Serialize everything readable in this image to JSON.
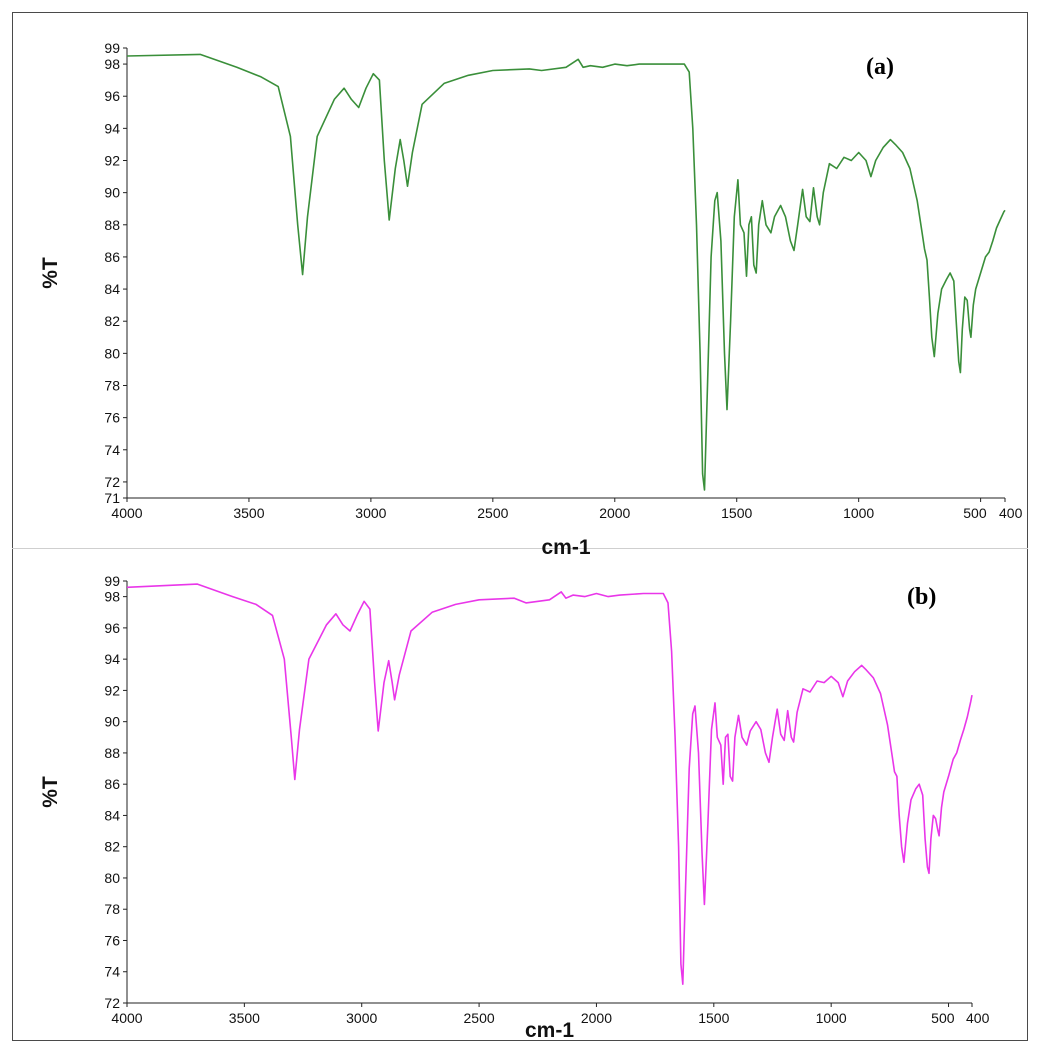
{
  "chart_data": [
    {
      "type": "line",
      "panel_label": "(a)",
      "xlabel": "cm-1",
      "ylabel": "%T",
      "xlim": [
        4000,
        400
      ],
      "ylim": [
        71,
        99
      ],
      "x_ticks": [
        4000,
        3500,
        3000,
        2500,
        2000,
        1500,
        1000,
        500,
        400
      ],
      "x_tick_labels": [
        "4000",
        "3500",
        "3000",
        "2500",
        "2000",
        "1500",
        "1000",
        "500",
        "400"
      ],
      "y_ticks": [
        71,
        72,
        74,
        76,
        78,
        80,
        82,
        84,
        86,
        88,
        90,
        92,
        94,
        96,
        98,
        99
      ],
      "grid": false,
      "line_color": "#3a8f3a",
      "series": [
        {
          "points": [
            [
              4000,
              98.5
            ],
            [
              3700,
              98.6
            ],
            [
              3550,
              97.8
            ],
            [
              3450,
              97.2
            ],
            [
              3380,
              96.6
            ],
            [
              3330,
              93.5
            ],
            [
              3300,
              88.0
            ],
            [
              3280,
              84.9
            ],
            [
              3260,
              88.5
            ],
            [
              3220,
              93.5
            ],
            [
              3150,
              95.8
            ],
            [
              3110,
              96.5
            ],
            [
              3080,
              95.8
            ],
            [
              3050,
              95.3
            ],
            [
              3020,
              96.5
            ],
            [
              2990,
              97.4
            ],
            [
              2965,
              97.0
            ],
            [
              2945,
              92.0
            ],
            [
              2925,
              88.3
            ],
            [
              2900,
              91.5
            ],
            [
              2880,
              93.3
            ],
            [
              2865,
              92.0
            ],
            [
              2850,
              90.4
            ],
            [
              2830,
              92.5
            ],
            [
              2790,
              95.5
            ],
            [
              2700,
              96.8
            ],
            [
              2600,
              97.3
            ],
            [
              2500,
              97.6
            ],
            [
              2350,
              97.7
            ],
            [
              2300,
              97.6
            ],
            [
              2200,
              97.8
            ],
            [
              2150,
              98.3
            ],
            [
              2130,
              97.8
            ],
            [
              2100,
              97.9
            ],
            [
              2050,
              97.8
            ],
            [
              2000,
              98.0
            ],
            [
              1950,
              97.9
            ],
            [
              1900,
              98.0
            ],
            [
              1800,
              98.0
            ],
            [
              1715,
              98.0
            ],
            [
              1695,
              97.5
            ],
            [
              1680,
              94.0
            ],
            [
              1665,
              88.0
            ],
            [
              1650,
              80.0
            ],
            [
              1640,
              72.5
            ],
            [
              1632,
              71.5
            ],
            [
              1620,
              78.0
            ],
            [
              1605,
              86.0
            ],
            [
              1590,
              89.5
            ],
            [
              1580,
              90.0
            ],
            [
              1565,
              87.0
            ],
            [
              1550,
              80.0
            ],
            [
              1540,
              76.5
            ],
            [
              1525,
              82.0
            ],
            [
              1510,
              88.5
            ],
            [
              1495,
              90.8
            ],
            [
              1485,
              88.0
            ],
            [
              1470,
              87.5
            ],
            [
              1460,
              84.8
            ],
            [
              1450,
              88.0
            ],
            [
              1440,
              88.5
            ],
            [
              1430,
              85.5
            ],
            [
              1420,
              85.0
            ],
            [
              1410,
              88.0
            ],
            [
              1395,
              89.5
            ],
            [
              1380,
              88.0
            ],
            [
              1360,
              87.5
            ],
            [
              1345,
              88.5
            ],
            [
              1320,
              89.2
            ],
            [
              1300,
              88.5
            ],
            [
              1280,
              87.0
            ],
            [
              1265,
              86.4
            ],
            [
              1250,
              88.0
            ],
            [
              1230,
              90.2
            ],
            [
              1215,
              88.5
            ],
            [
              1200,
              88.2
            ],
            [
              1185,
              90.3
            ],
            [
              1170,
              88.5
            ],
            [
              1160,
              88.0
            ],
            [
              1145,
              90.0
            ],
            [
              1120,
              91.8
            ],
            [
              1090,
              91.5
            ],
            [
              1060,
              92.2
            ],
            [
              1030,
              92.0
            ],
            [
              1000,
              92.5
            ],
            [
              970,
              92.0
            ],
            [
              950,
              91.0
            ],
            [
              930,
              92.0
            ],
            [
              900,
              92.8
            ],
            [
              870,
              93.3
            ],
            [
              850,
              93.0
            ],
            [
              820,
              92.5
            ],
            [
              790,
              91.5
            ],
            [
              760,
              89.5
            ],
            [
              740,
              87.5
            ],
            [
              730,
              86.5
            ],
            [
              720,
              85.8
            ],
            [
              710,
              83.5
            ],
            [
              700,
              81.0
            ],
            [
              690,
              79.8
            ],
            [
              675,
              82.5
            ],
            [
              660,
              84.0
            ],
            [
              640,
              84.6
            ],
            [
              625,
              85.0
            ],
            [
              610,
              84.5
            ],
            [
              600,
              82.0
            ],
            [
              590,
              79.5
            ],
            [
              583,
              78.8
            ],
            [
              575,
              81.5
            ],
            [
              565,
              83.5
            ],
            [
              555,
              83.3
            ],
            [
              545,
              81.5
            ],
            [
              540,
              81.0
            ],
            [
              530,
              83.0
            ],
            [
              520,
              84.0
            ],
            [
              500,
              85.0
            ],
            [
              480,
              86.0
            ],
            [
              465,
              86.3
            ],
            [
              450,
              87.0
            ],
            [
              435,
              87.8
            ],
            [
              420,
              88.3
            ],
            [
              405,
              88.8
            ],
            [
              400,
              88.9
            ]
          ]
        }
      ]
    },
    {
      "type": "line",
      "panel_label": "(b)",
      "xlabel": "cm-1",
      "ylabel": "%T",
      "xlim": [
        4000,
        400
      ],
      "ylim": [
        72,
        99
      ],
      "x_ticks": [
        4000,
        3500,
        3000,
        2500,
        2000,
        1500,
        1000,
        500,
        400
      ],
      "x_tick_labels": [
        "4000",
        "3500",
        "3000",
        "2500",
        "2000",
        "1500",
        "1000",
        "500",
        "400"
      ],
      "y_ticks": [
        72,
        74,
        76,
        78,
        80,
        82,
        84,
        86,
        88,
        90,
        92,
        94,
        96,
        98,
        99
      ],
      "grid": false,
      "line_color": "#e936e9",
      "series": [
        {
          "points": [
            [
              4000,
              98.6
            ],
            [
              3700,
              98.8
            ],
            [
              3550,
              98.0
            ],
            [
              3450,
              97.5
            ],
            [
              3380,
              96.8
            ],
            [
              3330,
              94.0
            ],
            [
              3300,
              89.0
            ],
            [
              3285,
              86.3
            ],
            [
              3265,
              89.5
            ],
            [
              3225,
              94.0
            ],
            [
              3150,
              96.2
            ],
            [
              3110,
              96.9
            ],
            [
              3080,
              96.2
            ],
            [
              3050,
              95.8
            ],
            [
              3020,
              96.8
            ],
            [
              2990,
              97.7
            ],
            [
              2965,
              97.2
            ],
            [
              2945,
              92.5
            ],
            [
              2930,
              89.4
            ],
            [
              2905,
              92.5
            ],
            [
              2885,
              93.9
            ],
            [
              2870,
              92.5
            ],
            [
              2860,
              91.4
            ],
            [
              2840,
              93.0
            ],
            [
              2790,
              95.8
            ],
            [
              2700,
              97.0
            ],
            [
              2600,
              97.5
            ],
            [
              2500,
              97.8
            ],
            [
              2350,
              97.9
            ],
            [
              2300,
              97.6
            ],
            [
              2200,
              97.8
            ],
            [
              2150,
              98.3
            ],
            [
              2130,
              97.9
            ],
            [
              2100,
              98.1
            ],
            [
              2050,
              98.0
            ],
            [
              2000,
              98.2
            ],
            [
              1950,
              98.0
            ],
            [
              1900,
              98.1
            ],
            [
              1800,
              98.2
            ],
            [
              1715,
              98.2
            ],
            [
              1695,
              97.6
            ],
            [
              1680,
              94.5
            ],
            [
              1665,
              89.0
            ],
            [
              1650,
              82.0
            ],
            [
              1640,
              74.5
            ],
            [
              1632,
              73.2
            ],
            [
              1620,
              79.5
            ],
            [
              1605,
              87.0
            ],
            [
              1590,
              90.5
            ],
            [
              1580,
              91.0
            ],
            [
              1565,
              88.0
            ],
            [
              1550,
              81.5
            ],
            [
              1540,
              78.3
            ],
            [
              1525,
              83.5
            ],
            [
              1510,
              89.5
            ],
            [
              1495,
              91.2
            ],
            [
              1485,
              89.0
            ],
            [
              1470,
              88.5
            ],
            [
              1460,
              86.0
            ],
            [
              1450,
              89.0
            ],
            [
              1440,
              89.2
            ],
            [
              1430,
              86.5
            ],
            [
              1420,
              86.2
            ],
            [
              1410,
              89.0
            ],
            [
              1395,
              90.4
            ],
            [
              1380,
              89.0
            ],
            [
              1360,
              88.5
            ],
            [
              1345,
              89.4
            ],
            [
              1320,
              90.0
            ],
            [
              1300,
              89.5
            ],
            [
              1280,
              88.0
            ],
            [
              1265,
              87.4
            ],
            [
              1250,
              89.0
            ],
            [
              1230,
              90.8
            ],
            [
              1215,
              89.2
            ],
            [
              1200,
              88.8
            ],
            [
              1185,
              90.7
            ],
            [
              1170,
              89.0
            ],
            [
              1160,
              88.7
            ],
            [
              1145,
              90.6
            ],
            [
              1120,
              92.1
            ],
            [
              1090,
              91.9
            ],
            [
              1060,
              92.6
            ],
            [
              1030,
              92.5
            ],
            [
              1000,
              92.9
            ],
            [
              970,
              92.5
            ],
            [
              950,
              91.6
            ],
            [
              930,
              92.6
            ],
            [
              900,
              93.2
            ],
            [
              870,
              93.6
            ],
            [
              850,
              93.3
            ],
            [
              820,
              92.8
            ],
            [
              790,
              91.8
            ],
            [
              760,
              89.8
            ],
            [
              740,
              87.8
            ],
            [
              730,
              86.8
            ],
            [
              720,
              86.5
            ],
            [
              710,
              84.0
            ],
            [
              700,
              82.0
            ],
            [
              690,
              81.0
            ],
            [
              675,
              83.5
            ],
            [
              660,
              85.0
            ],
            [
              640,
              85.7
            ],
            [
              625,
              86.0
            ],
            [
              610,
              85.3
            ],
            [
              600,
              82.5
            ],
            [
              590,
              80.7
            ],
            [
              583,
              80.3
            ],
            [
              575,
              82.5
            ],
            [
              565,
              84.0
            ],
            [
              555,
              83.8
            ],
            [
              545,
              83.0
            ],
            [
              540,
              82.7
            ],
            [
              530,
              84.5
            ],
            [
              520,
              85.5
            ],
            [
              500,
              86.5
            ],
            [
              480,
              87.6
            ],
            [
              465,
              88.0
            ],
            [
              450,
              88.8
            ],
            [
              435,
              89.5
            ],
            [
              420,
              90.3
            ],
            [
              405,
              91.3
            ],
            [
              400,
              91.7
            ]
          ]
        }
      ]
    }
  ]
}
